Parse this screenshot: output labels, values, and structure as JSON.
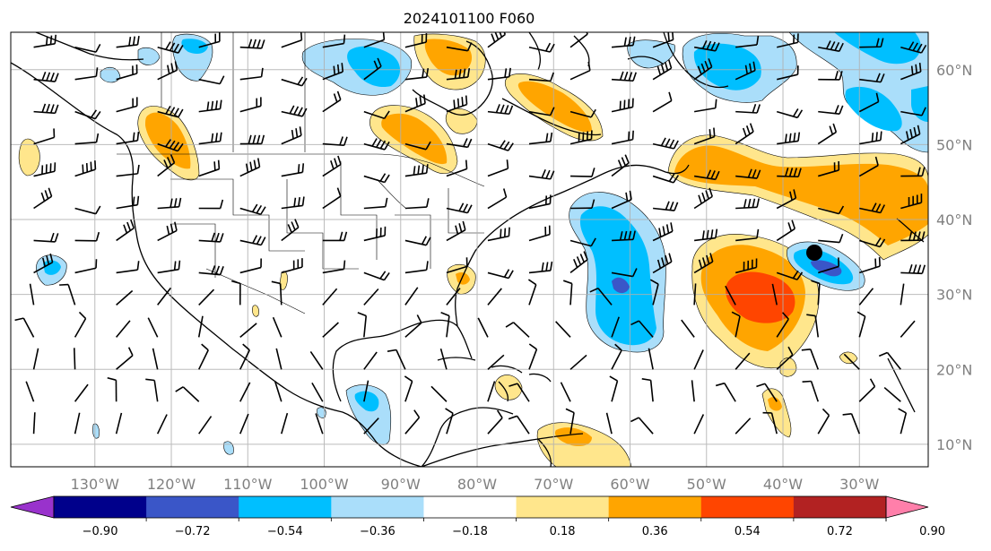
{
  "title": "2024101100 F060",
  "map": {
    "lon_labels": [
      "130°W",
      "120°W",
      "110°W",
      "100°W",
      "90°W",
      "80°W",
      "70°W",
      "60°W",
      "50°W",
      "40°W",
      "30°W"
    ],
    "lat_labels": [
      "60°N",
      "50°N",
      "40°N",
      "30°N",
      "20°N",
      "10°N"
    ],
    "extent": {
      "lon": [
        -141,
        -21
      ],
      "lat": [
        7,
        65
      ]
    },
    "gridlines": true
  },
  "colorbar": {
    "ticks": [
      "−0.90",
      "−0.72",
      "−0.54",
      "−0.36",
      "−0.18",
      "0.18",
      "0.36",
      "0.54",
      "0.72",
      "0.90"
    ],
    "colors": {
      "under": "#9932cc",
      "bins": [
        "#00008b",
        "#3a56c8",
        "#00bfff",
        "#aadefa",
        "#ffffff",
        "#ffe68c",
        "#ffa500",
        "#ff4500",
        "#b22222"
      ],
      "over": "#ff7faa"
    }
  },
  "chart_data": {
    "type": "heatmap",
    "title": "2024101100 F060",
    "xlabel": "",
    "ylabel": "",
    "xlim": [
      -141,
      -21
    ],
    "ylim": [
      7,
      65
    ],
    "color_scale": [
      -0.9,
      -0.72,
      -0.54,
      -0.36,
      -0.18,
      0.18,
      0.36,
      0.54,
      0.72,
      0.9
    ],
    "features": [
      {
        "sign": "positive",
        "peak": 0.72,
        "center": [
          -37,
          31
        ]
      },
      {
        "sign": "positive",
        "peak": 0.54,
        "center": [
          -38,
          44
        ]
      },
      {
        "sign": "positive",
        "peak": 0.54,
        "center": [
          -118,
          51
        ]
      },
      {
        "sign": "positive",
        "peak": 0.54,
        "center": [
          -62,
          56
        ]
      },
      {
        "sign": "negative",
        "peak": -0.72,
        "center": [
          -59,
          30
        ]
      },
      {
        "sign": "negative",
        "peak": -0.72,
        "center": [
          -28,
          35
        ]
      },
      {
        "sign": "negative",
        "peak": -0.54,
        "center": [
          -31,
          58
        ]
      }
    ],
    "marker": {
      "lon": -34,
      "lat": 36
    }
  }
}
